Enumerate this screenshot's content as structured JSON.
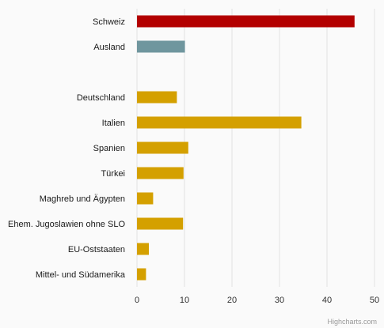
{
  "chart_data": {
    "type": "bar",
    "orientation": "horizontal",
    "categories": [
      "Schweiz",
      "Ausland",
      "",
      "Deutschland",
      "Italien",
      "Spanien",
      "Türkei",
      "Maghreb und Ägypten",
      "Ehem. Jugoslawien ohne SLO",
      "EU-Oststaaten",
      "Mittel- und Südamerika"
    ],
    "values": [
      45.8,
      10.1,
      null,
      8.4,
      34.6,
      10.8,
      9.8,
      3.4,
      9.7,
      2.5,
      1.9
    ],
    "bar_colors": [
      "#b30000",
      "#6f969e",
      "#d4a000",
      "#d4a000",
      "#d4a000",
      "#d4a000",
      "#d4a000",
      "#d4a000",
      "#d4a000",
      "#d4a000",
      "#d4a000"
    ],
    "xlim": [
      0,
      50
    ],
    "xticks": [
      0,
      10,
      20,
      30,
      40,
      50
    ],
    "grid": true,
    "legend": "none",
    "title": "",
    "xlabel": "",
    "ylabel": ""
  },
  "credits": "Highcharts.com"
}
